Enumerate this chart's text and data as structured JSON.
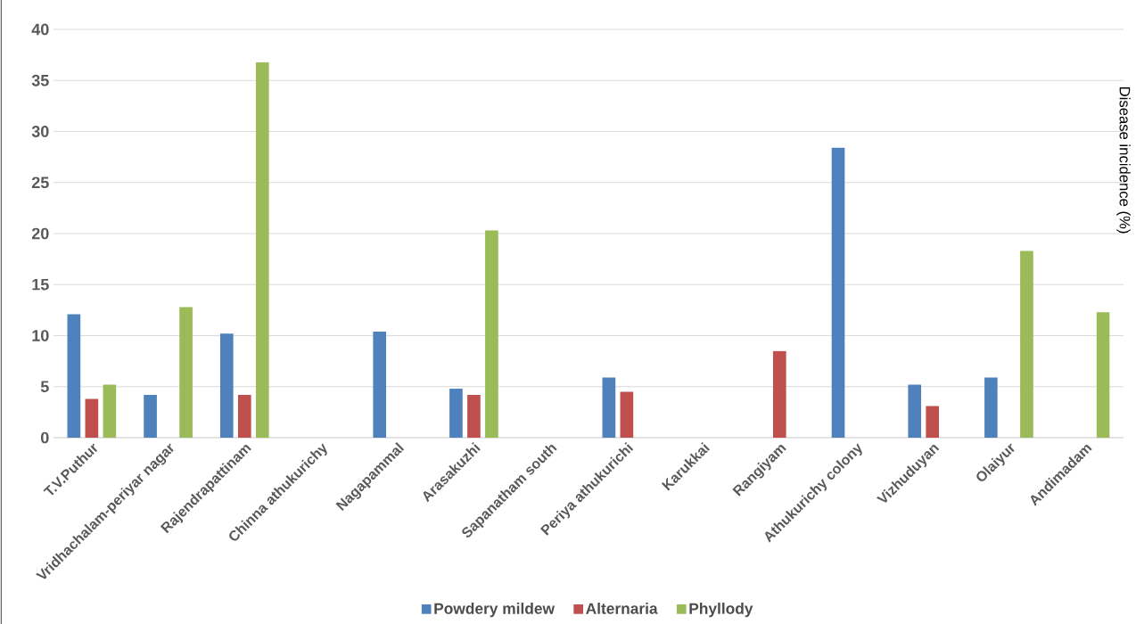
{
  "chart_data": {
    "type": "bar",
    "ylabel": "Disease incidence (%)",
    "categories": [
      "T.V.Puthur",
      "Vridhachalam-periyar nagar",
      "Rajendrapattinam",
      "Chinna athukurichy",
      "Nagapammal",
      "Arasakuzhi",
      "Sapanatham south",
      "Periya athukurichi",
      "Karukkai",
      "Rangiyam",
      "Athukurichy colony",
      "Vizhuduyan",
      "Olaiyur",
      "Andimadam"
    ],
    "series": [
      {
        "name": "Powdery mildew",
        "color": "#4f81bd",
        "values": [
          12.1,
          4.2,
          10.2,
          null,
          10.4,
          4.8,
          null,
          5.9,
          null,
          null,
          28.4,
          5.2,
          5.9,
          null
        ]
      },
      {
        "name": "Alternaria",
        "color": "#c0504d",
        "values": [
          3.8,
          null,
          4.2,
          null,
          null,
          4.2,
          null,
          4.5,
          null,
          8.5,
          null,
          3.1,
          null,
          null
        ]
      },
      {
        "name": "Phyllody",
        "color": "#9bbb59",
        "values": [
          5.2,
          12.8,
          36.8,
          null,
          null,
          20.3,
          null,
          null,
          null,
          null,
          null,
          null,
          18.3,
          12.3
        ]
      }
    ],
    "ylim": [
      0,
      40
    ],
    "yticks": [
      0,
      5,
      10,
      15,
      20,
      25,
      30,
      35,
      40
    ],
    "grid": "y",
    "legend": "bottom"
  }
}
